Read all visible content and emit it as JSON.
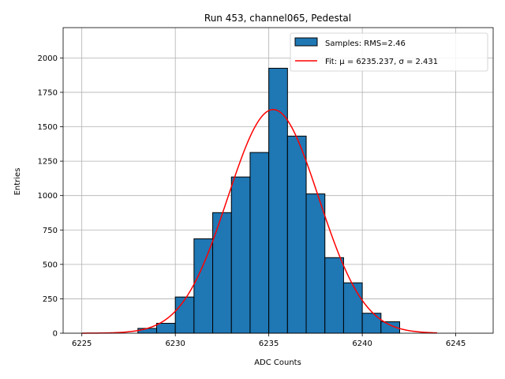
{
  "chart_data": {
    "type": "bar",
    "title": "Run 453, channel065, Pedestal",
    "xlabel": "ADC Counts",
    "ylabel": "Entries",
    "xlim": [
      6224,
      6247
    ],
    "ylim": [
      0,
      2220
    ],
    "xticks": [
      6225,
      6230,
      6235,
      6240,
      6245
    ],
    "yticks": [
      0,
      250,
      500,
      750,
      1000,
      1250,
      1500,
      1750,
      2000
    ],
    "grid": true,
    "legend_position": "top-right",
    "histogram": {
      "name": "Samples: RMS=2.46",
      "color": "#1f77b4",
      "edges": [
        6228,
        6229,
        6230,
        6231,
        6232,
        6233,
        6234,
        6235,
        6236,
        6237,
        6238,
        6239,
        6240,
        6241,
        6242
      ],
      "counts": [
        35,
        72,
        263,
        686,
        876,
        1135,
        1313,
        1925,
        1432,
        1012,
        549,
        366,
        145,
        83,
        12
      ]
    },
    "fit": {
      "name": "Fit: μ = 6235.237, σ = 2.431",
      "color": "#ff0000",
      "mu": 6235.237,
      "sigma": 2.431,
      "amplitude": 1625,
      "x_range": [
        6225,
        6244
      ]
    }
  }
}
